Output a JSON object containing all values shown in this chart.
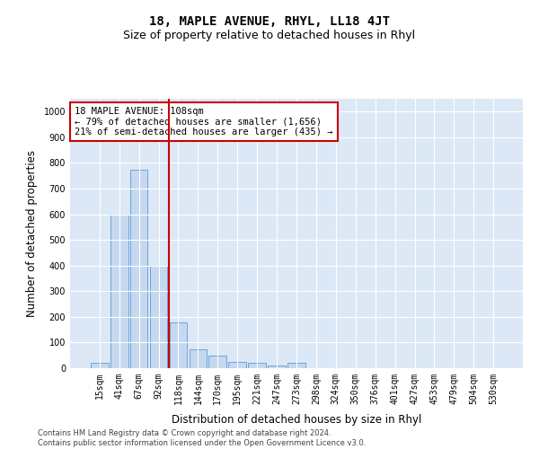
{
  "title": "18, MAPLE AVENUE, RHYL, LL18 4JT",
  "subtitle": "Size of property relative to detached houses in Rhyl",
  "xlabel": "Distribution of detached houses by size in Rhyl",
  "ylabel": "Number of detached properties",
  "footnote": "Contains HM Land Registry data © Crown copyright and database right 2024.\nContains public sector information licensed under the Open Government Licence v3.0.",
  "categories": [
    "15sqm",
    "41sqm",
    "67sqm",
    "92sqm",
    "118sqm",
    "144sqm",
    "170sqm",
    "195sqm",
    "221sqm",
    "247sqm",
    "273sqm",
    "298sqm",
    "324sqm",
    "350sqm",
    "376sqm",
    "401sqm",
    "427sqm",
    "453sqm",
    "479sqm",
    "504sqm",
    "530sqm"
  ],
  "values": [
    20,
    600,
    775,
    400,
    180,
    75,
    50,
    25,
    20,
    10,
    20,
    0,
    0,
    0,
    0,
    0,
    0,
    0,
    0,
    0,
    0
  ],
  "bar_color": "#c5d8f0",
  "bar_edge_color": "#5b9bd5",
  "vline_x_index": 3,
  "vline_color": "#cc0000",
  "annotation_text": "18 MAPLE AVENUE: 108sqm\n← 79% of detached houses are smaller (1,656)\n21% of semi-detached houses are larger (435) →",
  "annotation_box_color": "white",
  "annotation_box_edge_color": "#cc0000",
  "ylim": [
    0,
    1050
  ],
  "yticks": [
    0,
    100,
    200,
    300,
    400,
    500,
    600,
    700,
    800,
    900,
    1000
  ],
  "plot_background_color": "#dce8f5",
  "title_fontsize": 10,
  "subtitle_fontsize": 9,
  "tick_fontsize": 7,
  "label_fontsize": 8.5,
  "footnote_fontsize": 6
}
